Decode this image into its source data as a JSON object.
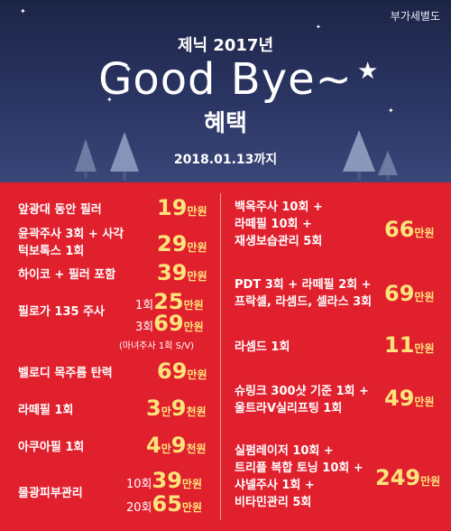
{
  "header": {
    "vat_note": "부가세별도",
    "subtitle": "제닉 2017년",
    "title": "Good Bye~",
    "label": "혜택",
    "date": "2018.01.13까지"
  },
  "left": [
    {
      "name": "앞광대 동안 필러",
      "price": "19",
      "unit": "만원"
    },
    {
      "name": "윤곽주사 3회 + 사각턱보톡스 1회",
      "price": "29",
      "unit": "만원"
    },
    {
      "name": "하이코 + 필러 포함",
      "price": "39",
      "unit": "만원"
    },
    {
      "name": "필로가 135 주사",
      "options": [
        {
          "count": "1회",
          "price": "25",
          "unit": "만원"
        },
        {
          "count": "3회",
          "price": "69",
          "unit": "만원"
        }
      ],
      "note": "(마녀주사 1회 S/V)"
    },
    {
      "name": "벨로디 목주름 탄력",
      "price": "69",
      "unit": "만원"
    },
    {
      "name": "라떼필 1회",
      "price_a": "3",
      "unit_a": "만",
      "price_b": "9",
      "unit_b": "천원"
    },
    {
      "name": "아쿠아필 1회",
      "price_a": "4",
      "unit_a": "만",
      "price_b": "9",
      "unit_b": "천원"
    },
    {
      "name": "물광피부관리",
      "options": [
        {
          "count": "10회",
          "price": "39",
          "unit": "만원"
        },
        {
          "count": "20회",
          "price": "65",
          "unit": "만원"
        }
      ]
    }
  ],
  "right": [
    {
      "lines": [
        "백옥주사 10회 +",
        "라떼필 10회 +",
        "재생보습관리 5회"
      ],
      "price": "66",
      "unit": "만원"
    },
    {
      "lines": [
        "PDT 3회 + 라떼필 2회 +",
        "프락셀, 라셈드, 셀라스 3회"
      ],
      "price": "69",
      "unit": "만원"
    },
    {
      "lines": [
        "라셈드 1회"
      ],
      "price": "11",
      "unit": "만원"
    },
    {
      "lines": [
        "슈링크 300샷 기준 1회 +",
        "울트라V실리프팅 1회"
      ],
      "price": "49",
      "unit": "만원"
    },
    {
      "lines": [
        "실펌레이저 10회 +",
        "트리플 복합 토닝 10회 +",
        "샤넬주사 1회 +",
        "비타민관리 5회"
      ],
      "price": "249",
      "unit": "만원"
    }
  ],
  "colors": {
    "banner": "#1c2446",
    "red": "#e1202e",
    "price": "#fde47a"
  }
}
